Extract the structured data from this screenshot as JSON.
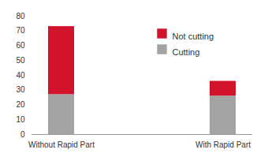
{
  "chart_data": {
    "type": "bar",
    "stacked": true,
    "categories": [
      "Without Rapid Part",
      "With Rapid Part"
    ],
    "series": [
      {
        "name": "Cutting",
        "color": "#a3a3a3",
        "values": [
          27,
          26
        ]
      },
      {
        "name": "Not cutting",
        "color": "#d2132c",
        "values": [
          46,
          10
        ]
      }
    ],
    "ylim": [
      0,
      80
    ],
    "yticks": [
      0,
      10,
      20,
      30,
      40,
      50,
      60,
      70,
      80
    ],
    "grid": false,
    "legend": "top-right"
  }
}
